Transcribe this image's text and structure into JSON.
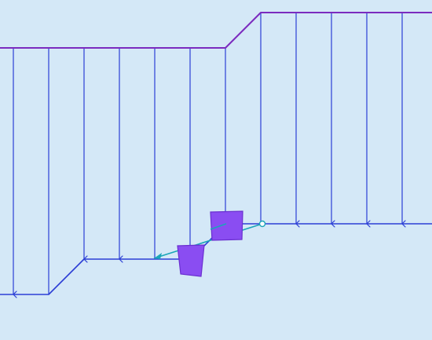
{
  "colors": {
    "background": "#d4e8f7",
    "top_edge": "#7b2bbf",
    "strand": "#2c3fd6",
    "bottom_edge": "#2c3fd6",
    "connector": "#1aa6b8",
    "block_fill": "#8a4df2",
    "block_stroke": "#6a2fd0",
    "anchor_fill": "#ffffff"
  },
  "diagram": {
    "elements": [
      "top-edge-path",
      "vertical-strands",
      "bottom-edge-path",
      "direction-arrows",
      "connector-line",
      "square-block",
      "trapezoid-block",
      "anchor-circle"
    ]
  }
}
